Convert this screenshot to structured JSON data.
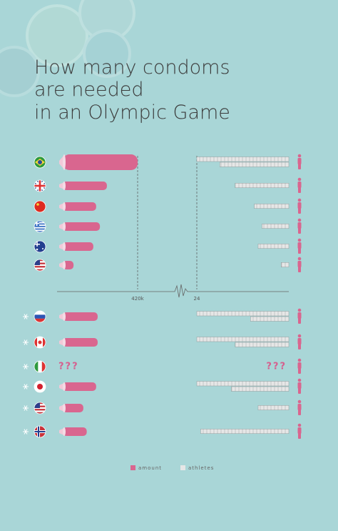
{
  "chart_data": {
    "type": "mirrored-bar",
    "title": [
      "How many condoms",
      "are needed",
      "in an Olympic Game"
    ],
    "xlim": [
      0,
      420000
    ],
    "xticks": [
      {
        "value": 420000,
        "label": "420k"
      }
    ],
    "x2lim": [
      0,
      24
    ],
    "x2ticks": [
      24
    ],
    "series": [
      {
        "name": "amount",
        "color": "#d9668f",
        "values": [
          420000,
          257000,
          200000,
          220000,
          185000,
          80000,
          208000,
          208000,
          null,
          200000,
          132000,
          150000
        ],
        "value_labels": [
          null,
          null,
          null,
          null,
          null,
          null,
          null,
          null,
          "???",
          null,
          null,
          null
        ]
      },
      {
        "name": "athletes",
        "color": "#e6e6e6",
        "axis": "x2",
        "values": [
          42,
          14,
          9,
          7,
          8,
          2,
          34,
          38,
          null,
          39,
          8,
          23
        ],
        "value_labels": [
          null,
          null,
          null,
          null,
          null,
          null,
          null,
          null,
          "???",
          null,
          null,
          null
        ]
      }
    ]
  }
}
